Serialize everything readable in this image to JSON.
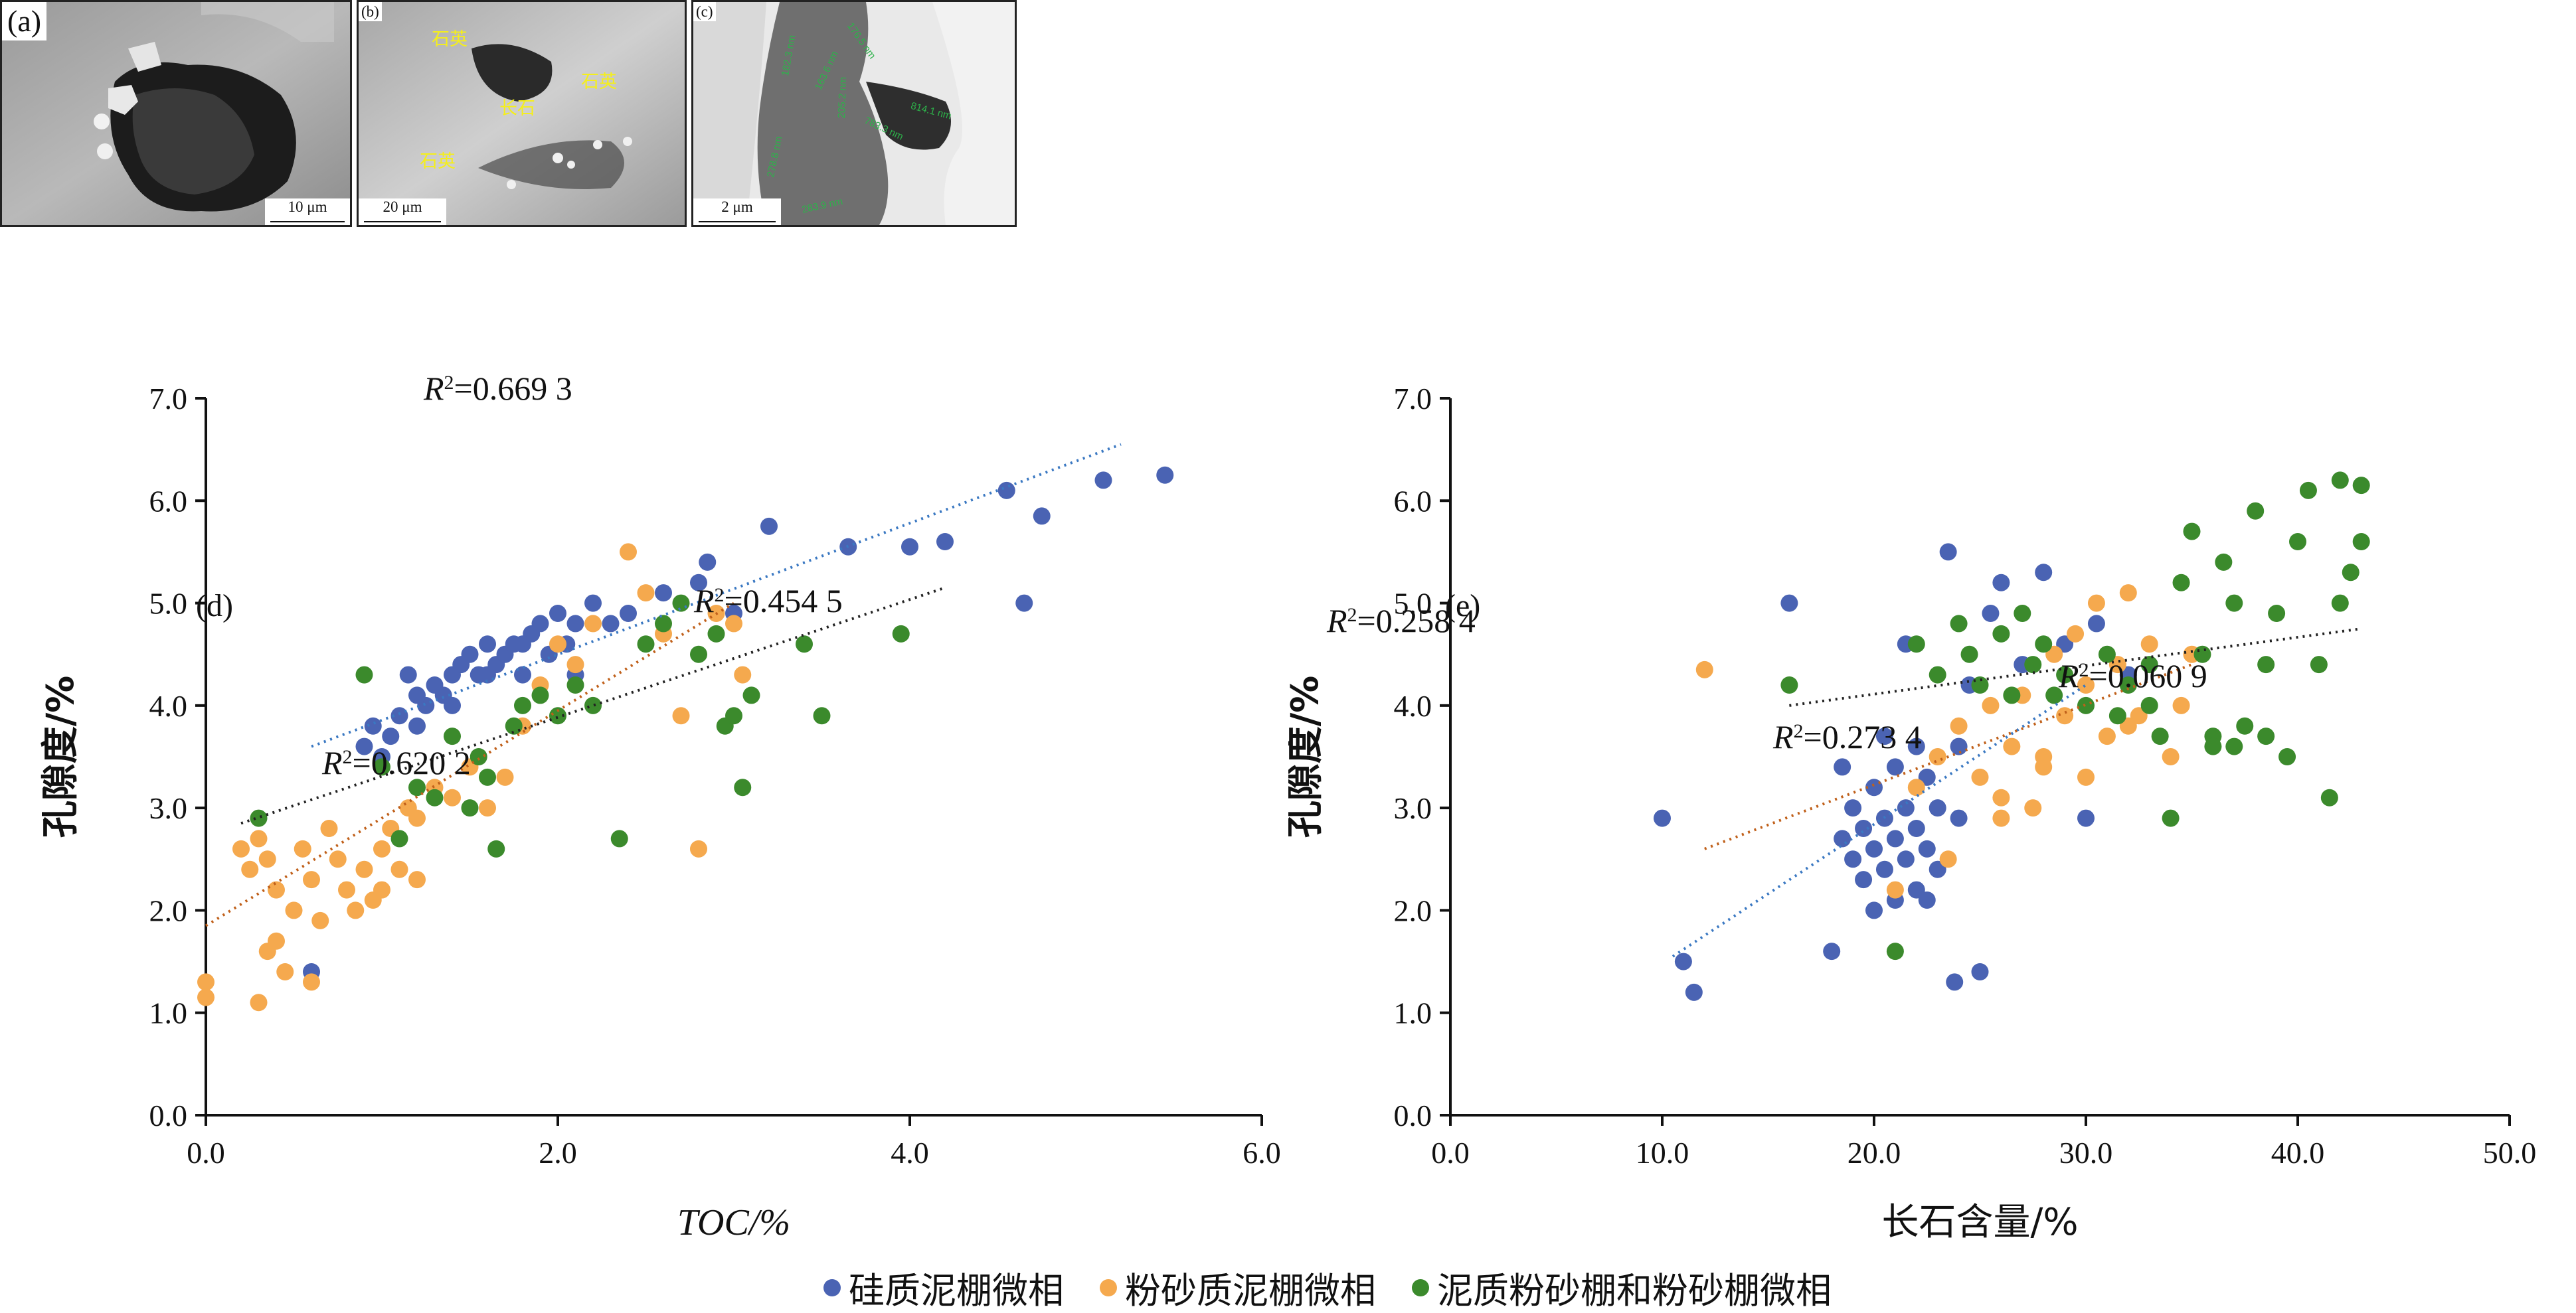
{
  "panels": {
    "a": {
      "label": "(a)",
      "scale": "10 μm"
    },
    "b": {
      "label": "(b)",
      "scale": "20 μm",
      "minerals": [
        "石英",
        "石英",
        "长石",
        "石英"
      ]
    },
    "c": {
      "label": "(c)",
      "scale": "2 μm",
      "measurements": [
        "182.3 nm",
        "176.5 nm",
        "163.6 nm",
        "205.2 nm",
        "814.1 nm",
        "783.3 nm",
        "278.8 nm",
        "283.9 nm"
      ]
    }
  },
  "legend": [
    {
      "label": "硅质泥棚微相",
      "color": "#4a63b3"
    },
    {
      "label": "粉砂质泥棚微相",
      "color": "#f5a94e"
    },
    {
      "label": "泥质粉砂棚和粉砂棚微相",
      "color": "#3b8a2c"
    }
  ],
  "chart_data": [
    {
      "type": "scatter",
      "panel_label": "(d)",
      "xlabel": "TOC/%",
      "ylabel": "孔隙度/%",
      "xlim": [
        0,
        6
      ],
      "ylim": [
        0,
        7
      ],
      "x_ticks": [
        "0.0",
        "2.0",
        "4.0",
        "6.0"
      ],
      "y_ticks": [
        "0.0",
        "1.0",
        "2.0",
        "3.0",
        "4.0",
        "5.0",
        "6.0",
        "7.0"
      ],
      "annotations": [
        {
          "r2": "=0.669 3",
          "series": 0
        },
        {
          "r2": "=0.454 5",
          "series": 2
        },
        {
          "r2": "=0.620 2",
          "series": 1
        }
      ],
      "series": [
        {
          "color": "#4a63b3",
          "trend": [
            [
              0.6,
              3.6
            ],
            [
              5.2,
              6.55
            ]
          ],
          "points": [
            [
              0.6,
              1.4
            ],
            [
              0.9,
              3.6
            ],
            [
              0.95,
              3.8
            ],
            [
              1.0,
              3.5
            ],
            [
              1.05,
              3.7
            ],
            [
              1.1,
              3.9
            ],
            [
              1.15,
              4.3
            ],
            [
              1.2,
              3.8
            ],
            [
              1.25,
              4.0
            ],
            [
              1.3,
              4.2
            ],
            [
              1.35,
              4.1
            ],
            [
              1.4,
              4.3
            ],
            [
              1.45,
              4.4
            ],
            [
              1.5,
              4.5
            ],
            [
              1.55,
              4.3
            ],
            [
              1.6,
              4.6
            ],
            [
              1.65,
              4.4
            ],
            [
              1.7,
              4.5
            ],
            [
              1.75,
              4.6
            ],
            [
              1.8,
              4.3
            ],
            [
              1.85,
              4.7
            ],
            [
              1.9,
              4.8
            ],
            [
              1.95,
              4.5
            ],
            [
              2.0,
              4.9
            ],
            [
              2.05,
              4.6
            ],
            [
              2.1,
              4.8
            ],
            [
              2.2,
              5.0
            ],
            [
              2.3,
              4.8
            ],
            [
              2.4,
              4.9
            ],
            [
              2.6,
              5.1
            ],
            [
              2.8,
              5.2
            ],
            [
              2.85,
              5.4
            ],
            [
              3.0,
              4.9
            ],
            [
              3.2,
              5.75
            ],
            [
              3.65,
              5.55
            ],
            [
              4.0,
              5.55
            ],
            [
              4.2,
              5.6
            ],
            [
              4.55,
              6.1
            ],
            [
              4.65,
              5.0
            ],
            [
              4.75,
              5.85
            ],
            [
              5.1,
              6.2
            ],
            [
              5.45,
              6.25
            ],
            [
              1.2,
              4.1
            ],
            [
              1.4,
              4.0
            ],
            [
              1.6,
              4.3
            ],
            [
              1.8,
              4.6
            ],
            [
              2.1,
              4.3
            ]
          ]
        },
        {
          "color": "#f5a94e",
          "trend": [
            [
              0.0,
              1.85
            ],
            [
              3.0,
              5.0
            ]
          ],
          "points": [
            [
              0.0,
              1.3
            ],
            [
              0.0,
              1.15
            ],
            [
              0.2,
              2.6
            ],
            [
              0.25,
              2.4
            ],
            [
              0.3,
              2.7
            ],
            [
              0.3,
              1.1
            ],
            [
              0.35,
              2.5
            ],
            [
              0.35,
              1.6
            ],
            [
              0.4,
              2.2
            ],
            [
              0.45,
              1.4
            ],
            [
              0.5,
              2.0
            ],
            [
              0.55,
              2.6
            ],
            [
              0.6,
              2.3
            ],
            [
              0.65,
              1.9
            ],
            [
              0.7,
              2.8
            ],
            [
              0.75,
              2.5
            ],
            [
              0.8,
              2.2
            ],
            [
              0.85,
              2.0
            ],
            [
              0.9,
              2.4
            ],
            [
              0.95,
              2.1
            ],
            [
              1.0,
              2.6
            ],
            [
              1.0,
              2.2
            ],
            [
              1.05,
              2.8
            ],
            [
              1.1,
              2.4
            ],
            [
              1.15,
              3.0
            ],
            [
              1.2,
              2.9
            ],
            [
              1.3,
              3.2
            ],
            [
              1.4,
              3.1
            ],
            [
              1.5,
              3.4
            ],
            [
              1.6,
              3.0
            ],
            [
              1.7,
              3.3
            ],
            [
              1.8,
              3.8
            ],
            [
              1.9,
              4.2
            ],
            [
              2.0,
              4.6
            ],
            [
              2.1,
              4.4
            ],
            [
              2.2,
              4.8
            ],
            [
              2.4,
              5.5
            ],
            [
              2.5,
              5.1
            ],
            [
              2.6,
              4.7
            ],
            [
              2.8,
              2.6
            ],
            [
              2.9,
              4.9
            ],
            [
              3.0,
              4.8
            ],
            [
              3.05,
              4.3
            ],
            [
              2.7,
              3.9
            ],
            [
              0.4,
              1.7
            ],
            [
              0.6,
              1.3
            ],
            [
              1.2,
              2.3
            ]
          ]
        },
        {
          "color": "#3b8a2c",
          "trend": [
            [
              0.2,
              2.85
            ],
            [
              4.2,
              5.15
            ]
          ],
          "points": [
            [
              0.3,
              2.9
            ],
            [
              0.9,
              4.3
            ],
            [
              1.0,
              3.4
            ],
            [
              1.1,
              2.7
            ],
            [
              1.3,
              3.1
            ],
            [
              1.4,
              3.7
            ],
            [
              1.5,
              3.0
            ],
            [
              1.6,
              3.3
            ],
            [
              1.65,
              2.6
            ],
            [
              1.75,
              3.8
            ],
            [
              1.8,
              4.0
            ],
            [
              1.9,
              4.1
            ],
            [
              2.0,
              3.9
            ],
            [
              2.1,
              4.2
            ],
            [
              2.2,
              4.0
            ],
            [
              2.35,
              2.7
            ],
            [
              2.5,
              4.6
            ],
            [
              2.6,
              4.8
            ],
            [
              2.7,
              5.0
            ],
            [
              2.8,
              4.5
            ],
            [
              2.9,
              4.7
            ],
            [
              2.95,
              3.8
            ],
            [
              3.0,
              3.9
            ],
            [
              3.05,
              3.2
            ],
            [
              3.1,
              4.1
            ],
            [
              3.4,
              4.6
            ],
            [
              3.5,
              3.9
            ],
            [
              3.95,
              4.7
            ],
            [
              1.2,
              3.2
            ],
            [
              1.55,
              3.5
            ]
          ]
        }
      ]
    },
    {
      "type": "scatter",
      "panel_label": "(e)",
      "xlabel": "长石含量/%",
      "ylabel": "孔隙度/%",
      "xlim": [
        0,
        50
      ],
      "ylim": [
        0,
        7
      ],
      "x_ticks": [
        "0.0",
        "10.0",
        "20.0",
        "30.0",
        "40.0",
        "50.0"
      ],
      "y_ticks": [
        "0.0",
        "1.0",
        "2.0",
        "3.0",
        "4.0",
        "5.0",
        "6.0",
        "7.0"
      ],
      "annotations": [
        {
          "r2": "=0.258 4",
          "series": 1
        },
        {
          "r2": "=0.273 4",
          "series": 0
        },
        {
          "r2": "=0.060 9",
          "series": 2
        }
      ],
      "series": [
        {
          "color": "#4a63b3",
          "trend": [
            [
              10.5,
              1.55
            ],
            [
              30.0,
              4.2
            ]
          ],
          "points": [
            [
              10.0,
              2.9
            ],
            [
              11.0,
              1.5
            ],
            [
              11.5,
              1.2
            ],
            [
              16.0,
              5.0
            ],
            [
              18.0,
              1.6
            ],
            [
              18.5,
              2.7
            ],
            [
              19.0,
              2.5
            ],
            [
              19.0,
              3.0
            ],
            [
              19.5,
              2.3
            ],
            [
              19.5,
              2.8
            ],
            [
              20.0,
              2.0
            ],
            [
              20.0,
              2.6
            ],
            [
              20.0,
              3.2
            ],
            [
              20.5,
              2.4
            ],
            [
              20.5,
              2.9
            ],
            [
              21.0,
              2.1
            ],
            [
              21.0,
              2.7
            ],
            [
              21.0,
              3.4
            ],
            [
              21.5,
              2.5
            ],
            [
              21.5,
              3.0
            ],
            [
              22.0,
              2.2
            ],
            [
              22.0,
              2.8
            ],
            [
              22.0,
              3.6
            ],
            [
              22.5,
              2.6
            ],
            [
              22.5,
              3.3
            ],
            [
              23.0,
              2.4
            ],
            [
              23.0,
              3.0
            ],
            [
              23.5,
              5.5
            ],
            [
              23.8,
              1.3
            ],
            [
              24.0,
              2.9
            ],
            [
              24.0,
              3.6
            ],
            [
              24.5,
              4.2
            ],
            [
              25.0,
              1.4
            ],
            [
              25.5,
              4.9
            ],
            [
              26.0,
              5.2
            ],
            [
              27.0,
              4.4
            ],
            [
              28.0,
              5.3
            ],
            [
              29.0,
              4.6
            ],
            [
              30.0,
              2.9
            ],
            [
              30.5,
              4.8
            ],
            [
              32.0,
              4.3
            ],
            [
              18.5,
              3.4
            ],
            [
              20.5,
              3.7
            ],
            [
              22.5,
              2.1
            ],
            [
              21.5,
              4.6
            ]
          ]
        },
        {
          "color": "#f5a94e",
          "trend": [
            [
              12.0,
              2.6
            ],
            [
              35.0,
              4.4
            ]
          ],
          "points": [
            [
              12.0,
              4.35
            ],
            [
              21.0,
              2.2
            ],
            [
              22.0,
              3.2
            ],
            [
              23.0,
              3.5
            ],
            [
              23.5,
              2.5
            ],
            [
              24.0,
              3.8
            ],
            [
              25.0,
              3.3
            ],
            [
              25.5,
              4.0
            ],
            [
              26.0,
              2.9
            ],
            [
              26.5,
              3.6
            ],
            [
              27.0,
              4.1
            ],
            [
              27.5,
              3.0
            ],
            [
              28.0,
              3.5
            ],
            [
              28.5,
              4.5
            ],
            [
              29.0,
              3.9
            ],
            [
              29.5,
              4.7
            ],
            [
              30.0,
              4.2
            ],
            [
              30.5,
              5.0
            ],
            [
              31.0,
              3.7
            ],
            [
              31.5,
              4.4
            ],
            [
              32.0,
              5.1
            ],
            [
              32.5,
              3.9
            ],
            [
              33.0,
              4.6
            ],
            [
              34.0,
              3.5
            ],
            [
              34.5,
              4.0
            ],
            [
              35.0,
              4.5
            ],
            [
              26.0,
              3.1
            ],
            [
              28.0,
              3.4
            ],
            [
              30.0,
              3.3
            ],
            [
              32.0,
              3.8
            ]
          ]
        },
        {
          "color": "#3b8a2c",
          "trend": [
            [
              16.0,
              4.0
            ],
            [
              43.0,
              4.75
            ]
          ],
          "points": [
            [
              16.0,
              4.2
            ],
            [
              21.0,
              1.6
            ],
            [
              22.0,
              4.6
            ],
            [
              23.0,
              4.3
            ],
            [
              24.0,
              4.8
            ],
            [
              24.5,
              4.5
            ],
            [
              25.0,
              4.2
            ],
            [
              26.0,
              4.7
            ],
            [
              27.0,
              4.9
            ],
            [
              27.5,
              4.4
            ],
            [
              28.0,
              4.6
            ],
            [
              28.5,
              4.1
            ],
            [
              29.0,
              4.3
            ],
            [
              30.0,
              4.0
            ],
            [
              31.0,
              4.5
            ],
            [
              31.5,
              3.9
            ],
            [
              32.0,
              4.2
            ],
            [
              33.0,
              4.4
            ],
            [
              33.5,
              3.7
            ],
            [
              34.0,
              2.9
            ],
            [
              34.5,
              5.2
            ],
            [
              35.0,
              5.7
            ],
            [
              35.5,
              4.5
            ],
            [
              36.0,
              3.7
            ],
            [
              36.5,
              5.4
            ],
            [
              37.0,
              5.0
            ],
            [
              37.5,
              3.8
            ],
            [
              38.0,
              5.9
            ],
            [
              38.5,
              4.4
            ],
            [
              39.0,
              4.9
            ],
            [
              39.5,
              3.5
            ],
            [
              40.0,
              5.6
            ],
            [
              40.5,
              6.1
            ],
            [
              41.0,
              4.4
            ],
            [
              41.5,
              3.1
            ],
            [
              42.0,
              6.2
            ],
            [
              42.5,
              5.3
            ],
            [
              43.0,
              6.15
            ],
            [
              43.0,
              5.6
            ],
            [
              42.0,
              5.0
            ],
            [
              36.0,
              3.6
            ],
            [
              37.0,
              3.6
            ],
            [
              38.5,
              3.7
            ],
            [
              33.0,
              4.0
            ],
            [
              26.5,
              4.1
            ]
          ]
        }
      ]
    }
  ]
}
